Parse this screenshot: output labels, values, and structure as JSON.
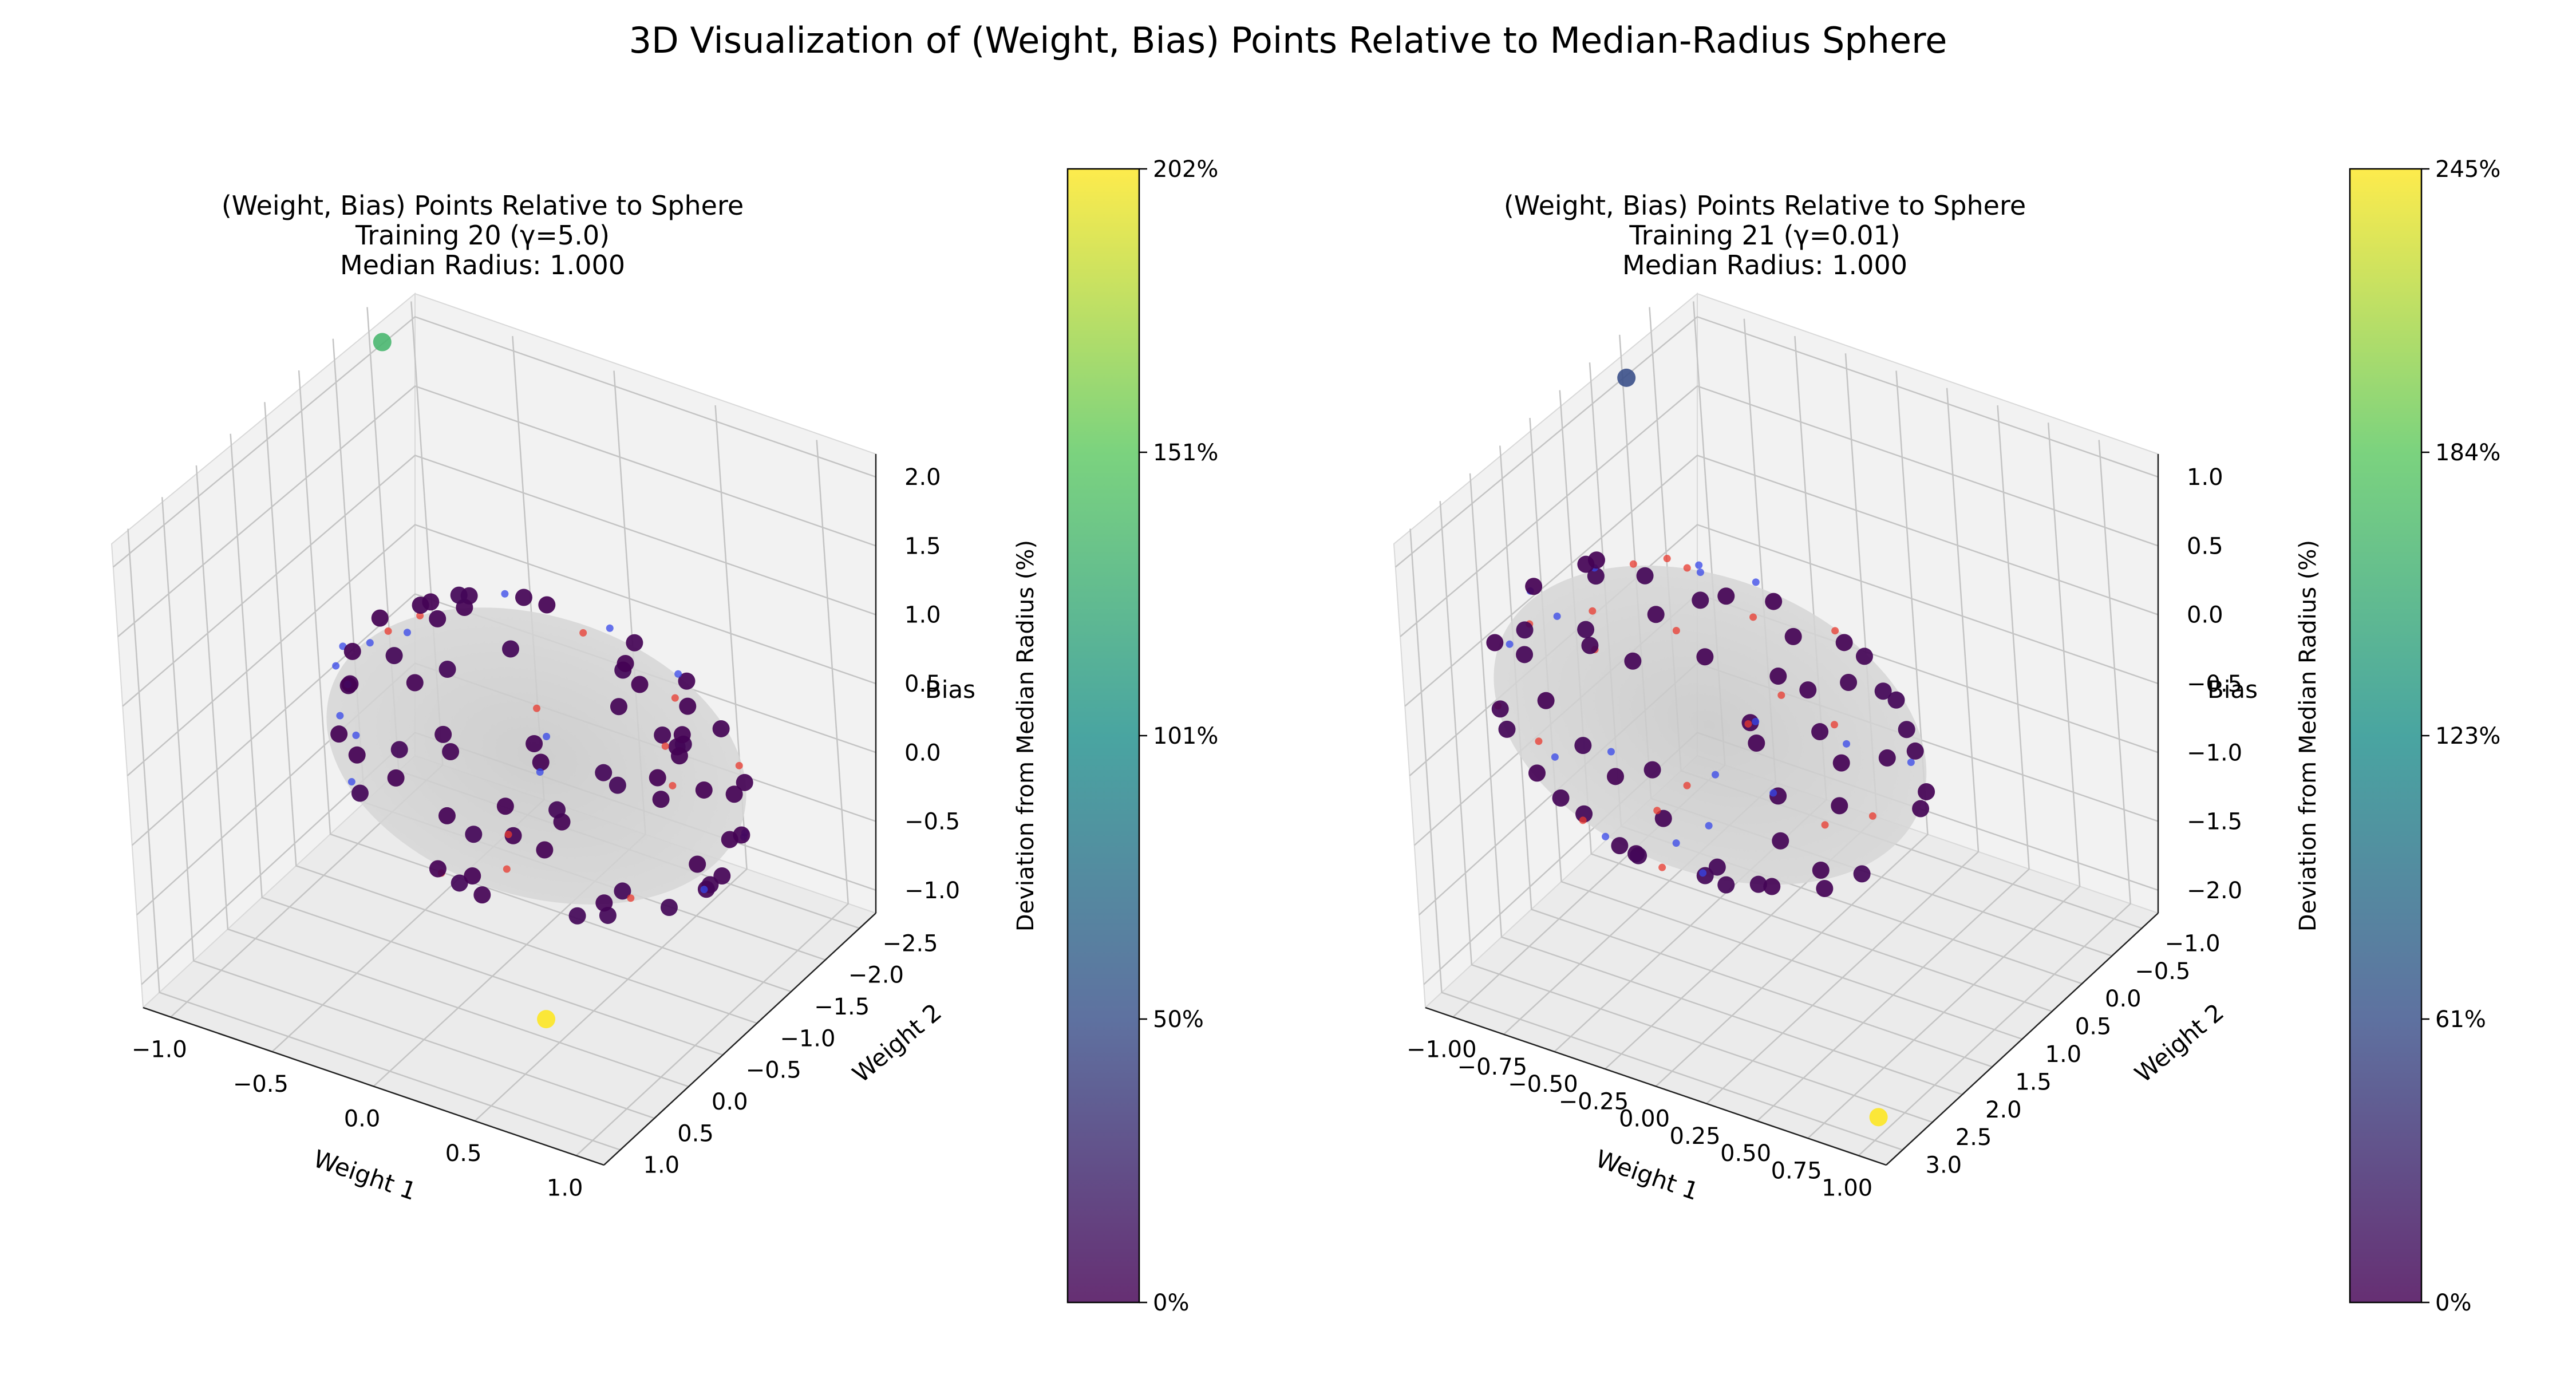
{
  "figure": {
    "suptitle": "3D Visualization of (Weight, Bias) Points Relative to Median-Radius Sphere"
  },
  "chart_data": [
    {
      "type": "scatter",
      "projection": "3d",
      "title_lines": [
        "(Weight, Bias) Points Relative to Sphere",
        "Training 20 (γ=5.0)",
        "Median Radius: 1.000"
      ],
      "xlabel": "Weight 1",
      "ylabel": "Weight 2",
      "zlabel": "Bias",
      "xticks": [
        "−1.0",
        "−0.5",
        "0.0",
        "0.5",
        "1.0"
      ],
      "yticks": [
        "−2.5",
        "−2.0",
        "−1.5",
        "−1.0",
        "−0.5",
        "0.0",
        "0.5",
        "1.0"
      ],
      "zticks": [
        "−1.0",
        "−0.5",
        "0.0",
        "0.5",
        "1.0",
        "1.5",
        "2.0"
      ],
      "xlim": [
        -1.1,
        1.2
      ],
      "ylim": [
        -2.7,
        1.3
      ],
      "zlim": [
        -1.15,
        2.25
      ],
      "grid": true,
      "sphere_radius": 1.0,
      "colorbar": {
        "label": "Deviation from Median Radius (%)",
        "ticks": [
          "0%",
          "50%",
          "101%",
          "151%",
          "202%"
        ],
        "max": 202
      },
      "outliers": [
        {
          "w1": -1.05,
          "w2": 1.1,
          "bias": 2.0,
          "deviation_pct": 135
        },
        {
          "w1": 0.9,
          "w2": -2.55,
          "bias": -0.3,
          "deviation_pct": 202
        }
      ]
    },
    {
      "type": "scatter",
      "projection": "3d",
      "title_lines": [
        "(Weight, Bias) Points Relative to Sphere",
        "Training 21 (γ=0.01)",
        "Median Radius: 1.000"
      ],
      "xlabel": "Weight 1",
      "ylabel": "Weight 2",
      "zlabel": "Bias",
      "xticks": [
        "−1.00",
        "−0.75",
        "−0.50",
        "−0.25",
        "0.00",
        "0.25",
        "0.50",
        "0.75",
        "1.00"
      ],
      "yticks": [
        "−1.0",
        "−0.5",
        "0.0",
        "0.5",
        "1.0",
        "1.5",
        "2.0",
        "2.5",
        "3.0"
      ],
      "zticks": [
        "−2.0",
        "−1.5",
        "−1.0",
        "−0.5",
        "0.0",
        "0.5",
        "1.0"
      ],
      "xlim": [
        -1.1,
        1.1
      ],
      "ylim": [
        -1.2,
        3.2
      ],
      "zlim": [
        -2.05,
        1.2
      ],
      "grid": true,
      "sphere_radius": 1.0,
      "colorbar": {
        "label": "Deviation from Median Radius (%)",
        "ticks": [
          "0%",
          "61%",
          "123%",
          "184%",
          "245%"
        ],
        "max": 245
      },
      "outliers": [
        {
          "w1": -1.0,
          "w2": 2.2,
          "bias": 1.05,
          "deviation_pct": 60
        },
        {
          "w1": 0.95,
          "w2": -0.8,
          "bias": -1.95,
          "deviation_pct": 245
        }
      ]
    }
  ]
}
